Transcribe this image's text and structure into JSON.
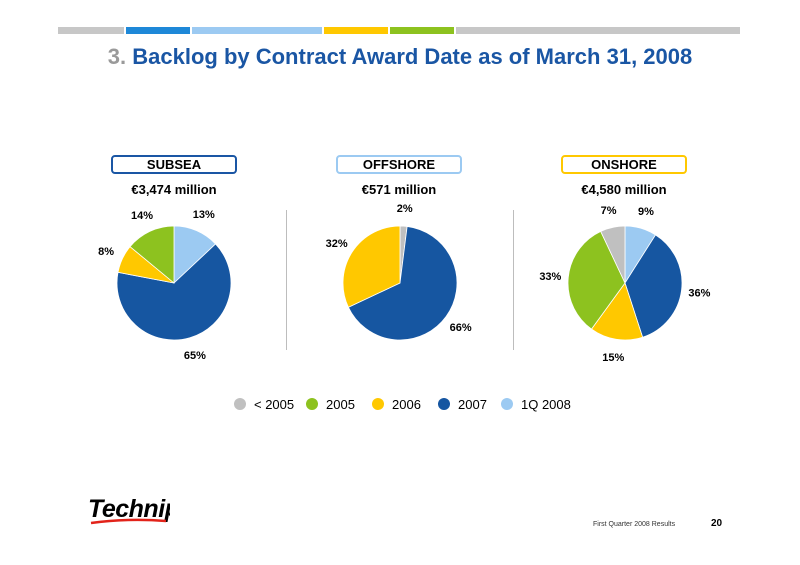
{
  "title": {
    "number": "3.",
    "text": "Backlog by Contract Award Date as of March 31, 2008"
  },
  "colors": {
    "lt2005": "#c0c0c0",
    "y2005": "#8dc21f",
    "y2006": "#ffc800",
    "y2007": "#1656a1",
    "q1_2008": "#9ccaf2",
    "bar_gray": "#c7c7c7",
    "bar_blue": "#1e88d8"
  },
  "legend": [
    "< 2005",
    "2005",
    "2006",
    "2007",
    "1Q 2008"
  ],
  "chart_data": [
    {
      "type": "pie",
      "title": "SUBSEA",
      "subtitle": "€3,474 million",
      "series": [
        {
          "name": "1Q 2008",
          "value": 13,
          "label": "13%"
        },
        {
          "name": "2007",
          "value": 65,
          "label": "65%"
        },
        {
          "name": "2006",
          "value": 8,
          "label": "8%"
        },
        {
          "name": "2005",
          "value": 14,
          "label": "14%"
        }
      ]
    },
    {
      "type": "pie",
      "title": "OFFSHORE",
      "subtitle": "€571 million",
      "series": [
        {
          "name": "< 2005",
          "value": 2,
          "label": "2%"
        },
        {
          "name": "2007",
          "value": 66,
          "label": "66%"
        },
        {
          "name": "2006",
          "value": 32,
          "label": "32%"
        }
      ]
    },
    {
      "type": "pie",
      "title": "ONSHORE",
      "subtitle": "€4,580 million",
      "series": [
        {
          "name": "1Q 2008",
          "value": 9,
          "label": "9%"
        },
        {
          "name": "2007",
          "value": 36,
          "label": "36%"
        },
        {
          "name": "2006",
          "value": 15,
          "label": "15%"
        },
        {
          "name": "2005",
          "value": 33,
          "label": "33%"
        },
        {
          "name": "< 2005",
          "value": 7,
          "label": "7%"
        }
      ]
    }
  ],
  "logo": {
    "text": "Technip"
  },
  "footer": {
    "text": "First Quarter 2008 Results",
    "page": "20"
  }
}
